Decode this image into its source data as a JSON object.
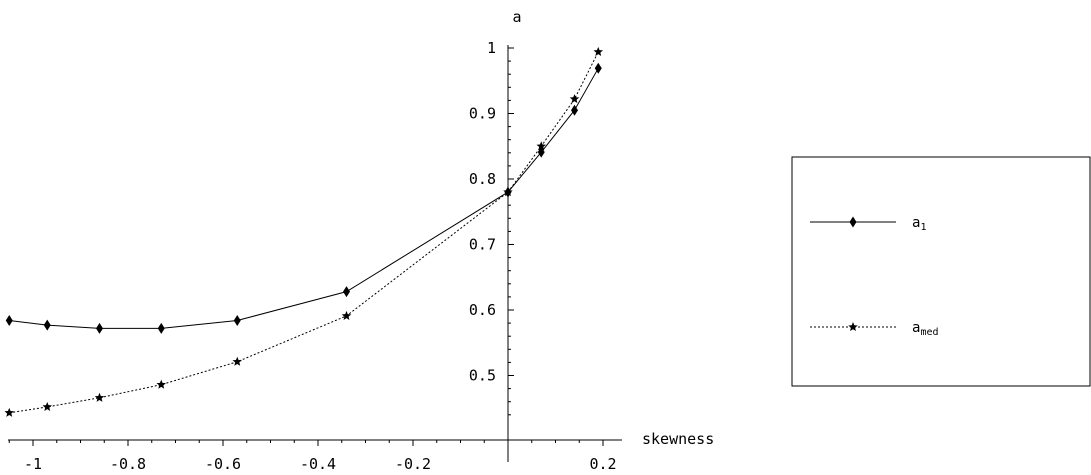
{
  "chart_data": {
    "type": "line",
    "xlabel": "skewness",
    "ylabel": "a",
    "xlim": [
      -1.05,
      0.22
    ],
    "ylim": [
      0.44,
      1.0
    ],
    "x_ticks": [
      -1,
      -0.8,
      -0.6,
      -0.4,
      -0.2,
      0.2
    ],
    "x_tick_labels": [
      "-1",
      "-0.8",
      "-0.6",
      "-0.4",
      "-0.2",
      "0.2"
    ],
    "y_ticks": [
      0.5,
      0.6,
      0.7,
      0.8,
      0.9,
      1
    ],
    "y_tick_labels": [
      "0.5",
      "0.6",
      "0.7",
      "0.8",
      "0.9",
      "1"
    ],
    "grid": false,
    "legend_position": "right",
    "series": [
      {
        "name": "a",
        "name_subscript": "1",
        "line_style": "solid",
        "marker": "diamond",
        "x": [
          -1.05,
          -0.97,
          -0.86,
          -0.73,
          -0.57,
          -0.34,
          0.0,
          0.07,
          0.14,
          0.19
        ],
        "y": [
          0.584,
          0.577,
          0.572,
          0.572,
          0.584,
          0.628,
          0.78,
          0.841,
          0.905,
          0.969
        ]
      },
      {
        "name": "a",
        "name_subscript": "med",
        "line_style": "dotted",
        "marker": "star",
        "x": [
          -1.05,
          -0.97,
          -0.86,
          -0.73,
          -0.57,
          -0.34,
          0.0,
          0.07,
          0.14,
          0.19
        ],
        "y": [
          0.443,
          0.452,
          0.466,
          0.486,
          0.521,
          0.591,
          0.78,
          0.85,
          0.922,
          0.994
        ]
      }
    ]
  }
}
